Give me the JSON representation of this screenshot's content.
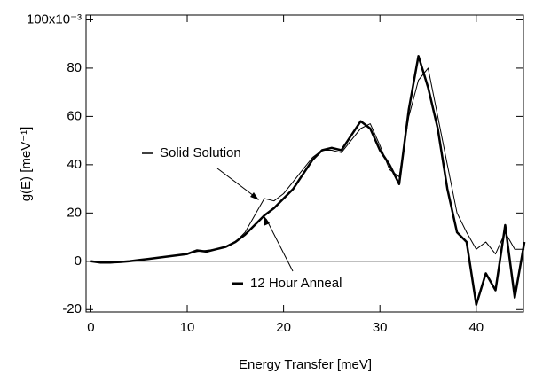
{
  "chart_data": {
    "type": "line",
    "xlabel": "Energy Transfer [meV]",
    "ylabel": "g(E)  [meV⁻¹]",
    "x": [
      0,
      1,
      2,
      3,
      4,
      5,
      6,
      7,
      8,
      9,
      10,
      11,
      12,
      13,
      14,
      15,
      16,
      17,
      18,
      19,
      20,
      21,
      22,
      23,
      24,
      25,
      26,
      27,
      28,
      29,
      30,
      31,
      32,
      33,
      34,
      35,
      36,
      37,
      38,
      39,
      40,
      41,
      42,
      43,
      44,
      45
    ],
    "series": [
      {
        "name": "Solid Solution",
        "color": "#000000",
        "width": 1,
        "values": [
          0,
          -0.5,
          -0.5,
          -0.3,
          0,
          0.5,
          1,
          1.5,
          2,
          2.5,
          3,
          4,
          4.5,
          5,
          6,
          8,
          12,
          19,
          26,
          25,
          28,
          33,
          38,
          43,
          46,
          46,
          45,
          50,
          55,
          57,
          48,
          38,
          35,
          60,
          75,
          80,
          60,
          40,
          20,
          12,
          5,
          8,
          3,
          12,
          5,
          5
        ]
      },
      {
        "name": "12 Hour Anneal",
        "color": "#000000",
        "width": 2.5,
        "values": [
          0,
          -0.5,
          -0.5,
          -0.3,
          0,
          0.5,
          1,
          1.5,
          2,
          2.5,
          3,
          4.5,
          4,
          5,
          6,
          8,
          11,
          15,
          19,
          22,
          26,
          30,
          36,
          42,
          46,
          47,
          46,
          52,
          58,
          55,
          46,
          40,
          32,
          63,
          85,
          72,
          55,
          30,
          12,
          8,
          -18,
          -5,
          -12,
          15,
          -15,
          8
        ]
      }
    ],
    "xlim": [
      -0.5,
      44.9
    ],
    "xticks": [
      0,
      10,
      20,
      30,
      40
    ],
    "ylim": [
      -21,
      102
    ],
    "yticks": [
      -20,
      0,
      20,
      40,
      60,
      80,
      {
        "value": 100,
        "label": "100x10⁻³"
      }
    ]
  }
}
